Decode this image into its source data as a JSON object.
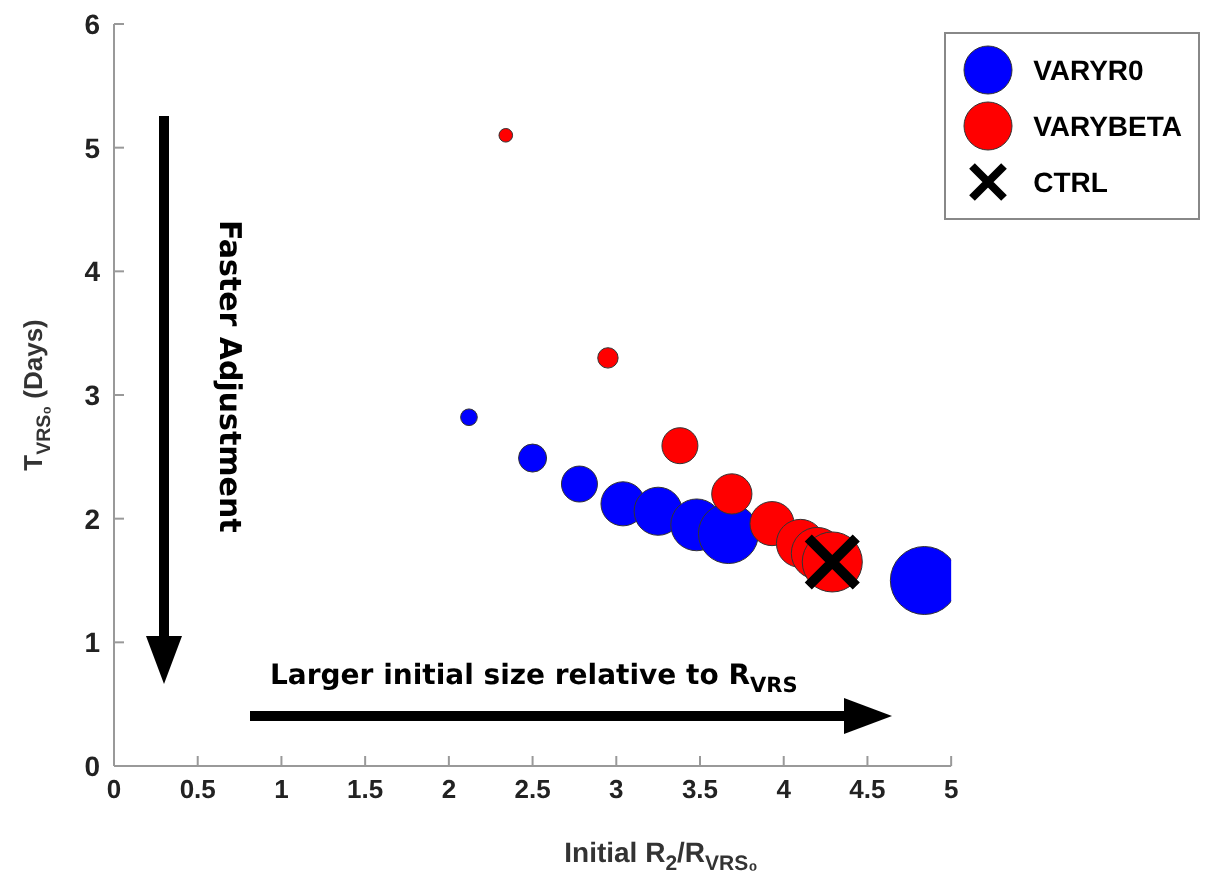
{
  "chart_data": {
    "type": "bubble",
    "xlabel": "Initial R$_{2}$/R$_{VRS₀}$",
    "ylabel": "T$_{VRS₀}$ (Days)",
    "xlim": [
      0,
      5
    ],
    "xticks": [
      0,
      0.5,
      1,
      1.5,
      2,
      2.5,
      3,
      3.5,
      4,
      4.5,
      5
    ],
    "ylim": [
      0,
      6
    ],
    "yticks": [
      0,
      1,
      2,
      3,
      4,
      5,
      6
    ],
    "legend": "top right",
    "annotations": [
      "Faster Adjustment",
      "Larger initial size relative to R$_{VRS}$"
    ],
    "series": [
      {
        "name": "VARYR0",
        "color": "#0000ff",
        "marker": "circle",
        "x": [
          2.12,
          2.5,
          2.78,
          3.04,
          3.25,
          3.48,
          3.67,
          4.84
        ],
        "values": [
          2.82,
          2.49,
          2.28,
          2.12,
          2.06,
          1.95,
          1.88,
          1.5
        ],
        "sizes": [
          0.06,
          0.17,
          0.28,
          0.42,
          0.5,
          0.58,
          0.78,
          1
        ]
      },
      {
        "name": "VARYBETA",
        "color": "#ff0000",
        "marker": "circle",
        "x": [
          2.34,
          2.95,
          3.38,
          3.69,
          3.93,
          4.1,
          4.2,
          4.29
        ],
        "values": [
          5.1,
          3.3,
          2.59,
          2.2,
          1.96,
          1.8,
          1.72,
          1.65
        ],
        "sizes": [
          0.04,
          0.09,
          0.28,
          0.35,
          0.42,
          0.5,
          0.58,
          0.78
        ]
      },
      {
        "name": "CTRL",
        "type": "scatter",
        "color": "#000000",
        "marker": "cross",
        "x": [
          4.29
        ],
        "values": [
          1.65
        ]
      }
    ]
  }
}
